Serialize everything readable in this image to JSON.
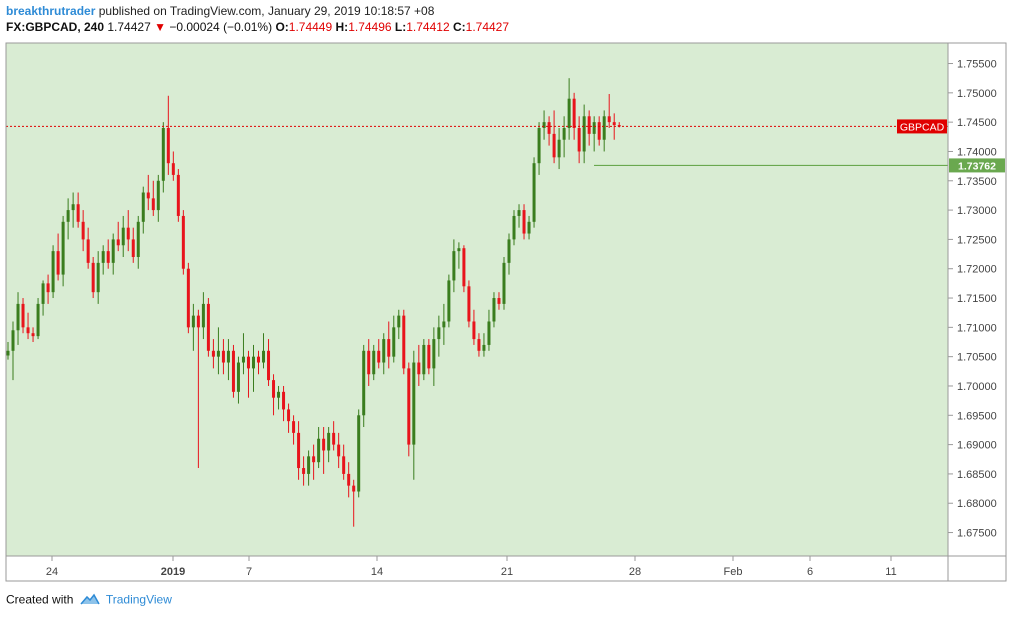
{
  "header": {
    "author": "breakthrutrader",
    "published_text": "published on TradingView.com, January 29, 2019 10:18:57 +08",
    "symbol": "FX:GBPCAD, 240",
    "last_price": "1.74427",
    "change_arrow": "▼",
    "change": "−0.00024 (−0.01%)",
    "o_label": "O:",
    "o_value": "1.74449",
    "h_label": "H:",
    "h_value": "1.74496",
    "l_label": "L:",
    "l_value": "1.74412",
    "c_label": "C:",
    "c_value": "1.74427"
  },
  "footer": {
    "created_with": "Created with",
    "brand": "TradingView",
    "logo_icon": "tradingview-cloud-icon"
  },
  "colors": {
    "plot_background": "#d9ecd3",
    "up_candle": "#3a7d1e",
    "down_candle": "#e8141c",
    "price_line": "#e00000",
    "support_line": "#6aa84f",
    "axis_text": "#444444"
  },
  "chart_data": {
    "type": "candlestick",
    "timeframe_minutes": 240,
    "x_tick_labels": [
      "24",
      "2019",
      "7",
      "14",
      "21",
      "28",
      "Feb",
      "6",
      "11"
    ],
    "y_tick_labels": [
      "1.75500",
      "1.75000",
      "1.74500",
      "1.74000",
      "1.73500",
      "1.73000",
      "1.72500",
      "1.72000",
      "1.71500",
      "1.71000",
      "1.70500",
      "1.70000",
      "1.69500",
      "1.69000",
      "1.68500",
      "1.68000",
      "1.67500"
    ],
    "ylim": [
      1.671,
      1.7585
    ],
    "current_price_label": "GBPCAD",
    "current_price": 1.74427,
    "support_level_label": "1.73762",
    "support_level": 1.73762,
    "candles_ohlc": [
      [
        1.7052,
        1.7075,
        1.7045,
        1.706
      ],
      [
        1.706,
        1.711,
        1.701,
        1.7095
      ],
      [
        1.7095,
        1.716,
        1.707,
        1.714
      ],
      [
        1.714,
        1.715,
        1.709,
        1.71
      ],
      [
        1.71,
        1.7125,
        1.708,
        1.709
      ],
      [
        1.709,
        1.71,
        1.7075,
        1.7085
      ],
      [
        1.7085,
        1.715,
        1.708,
        1.714
      ],
      [
        1.714,
        1.718,
        1.712,
        1.7175
      ],
      [
        1.7175,
        1.719,
        1.714,
        1.716
      ],
      [
        1.716,
        1.724,
        1.715,
        1.723
      ],
      [
        1.723,
        1.726,
        1.718,
        1.719
      ],
      [
        1.719,
        1.729,
        1.717,
        1.728
      ],
      [
        1.728,
        1.732,
        1.725,
        1.73
      ],
      [
        1.73,
        1.733,
        1.727,
        1.731
      ],
      [
        1.731,
        1.733,
        1.727,
        1.728
      ],
      [
        1.728,
        1.73,
        1.723,
        1.725
      ],
      [
        1.725,
        1.727,
        1.72,
        1.721
      ],
      [
        1.721,
        1.722,
        1.715,
        1.716
      ],
      [
        1.716,
        1.723,
        1.714,
        1.721
      ],
      [
        1.721,
        1.724,
        1.719,
        1.723
      ],
      [
        1.723,
        1.725,
        1.72,
        1.721
      ],
      [
        1.721,
        1.726,
        1.719,
        1.725
      ],
      [
        1.725,
        1.728,
        1.723,
        1.724
      ],
      [
        1.724,
        1.729,
        1.722,
        1.727
      ],
      [
        1.727,
        1.73,
        1.723,
        1.725
      ],
      [
        1.725,
        1.727,
        1.721,
        1.722
      ],
      [
        1.722,
        1.729,
        1.72,
        1.728
      ],
      [
        1.728,
        1.734,
        1.726,
        1.733
      ],
      [
        1.733,
        1.736,
        1.73,
        1.732
      ],
      [
        1.732,
        1.735,
        1.729,
        1.73
      ],
      [
        1.73,
        1.736,
        1.728,
        1.735
      ],
      [
        1.735,
        1.745,
        1.733,
        1.744
      ],
      [
        1.744,
        1.7495,
        1.736,
        1.738
      ],
      [
        1.738,
        1.74,
        1.735,
        1.736
      ],
      [
        1.736,
        1.737,
        1.728,
        1.729
      ],
      [
        1.729,
        1.73,
        1.719,
        1.72
      ],
      [
        1.72,
        1.721,
        1.709,
        1.71
      ],
      [
        1.71,
        1.714,
        1.706,
        1.712
      ],
      [
        1.712,
        1.713,
        1.686,
        1.71
      ],
      [
        1.71,
        1.716,
        1.708,
        1.714
      ],
      [
        1.714,
        1.715,
        1.705,
        1.706
      ],
      [
        1.706,
        1.708,
        1.703,
        1.705
      ],
      [
        1.705,
        1.71,
        1.702,
        1.706
      ],
      [
        1.706,
        1.708,
        1.702,
        1.704
      ],
      [
        1.704,
        1.708,
        1.701,
        1.706
      ],
      [
        1.706,
        1.707,
        1.698,
        1.699
      ],
      [
        1.699,
        1.705,
        1.697,
        1.704
      ],
      [
        1.704,
        1.709,
        1.702,
        1.705
      ],
      [
        1.705,
        1.706,
        1.698,
        1.703
      ],
      [
        1.703,
        1.707,
        1.699,
        1.705
      ],
      [
        1.705,
        1.706,
        1.702,
        1.704
      ],
      [
        1.704,
        1.709,
        1.703,
        1.706
      ],
      [
        1.706,
        1.708,
        1.7,
        1.701
      ],
      [
        1.701,
        1.702,
        1.695,
        1.698
      ],
      [
        1.698,
        1.7,
        1.696,
        1.699
      ],
      [
        1.699,
        1.7,
        1.694,
        1.696
      ],
      [
        1.696,
        1.697,
        1.692,
        1.694
      ],
      [
        1.694,
        1.695,
        1.69,
        1.692
      ],
      [
        1.692,
        1.694,
        1.684,
        1.686
      ],
      [
        1.686,
        1.688,
        1.683,
        1.685
      ],
      [
        1.685,
        1.689,
        1.683,
        1.688
      ],
      [
        1.688,
        1.69,
        1.684,
        1.687
      ],
      [
        1.687,
        1.693,
        1.686,
        1.691
      ],
      [
        1.691,
        1.693,
        1.685,
        1.689
      ],
      [
        1.689,
        1.693,
        1.687,
        1.692
      ],
      [
        1.692,
        1.694,
        1.689,
        1.69
      ],
      [
        1.69,
        1.692,
        1.686,
        1.688
      ],
      [
        1.688,
        1.69,
        1.684,
        1.685
      ],
      [
        1.685,
        1.687,
        1.681,
        1.683
      ],
      [
        1.683,
        1.684,
        1.676,
        1.682
      ],
      [
        1.682,
        1.696,
        1.681,
        1.695
      ],
      [
        1.695,
        1.707,
        1.693,
        1.706
      ],
      [
        1.706,
        1.708,
        1.7,
        1.702
      ],
      [
        1.702,
        1.707,
        1.701,
        1.706
      ],
      [
        1.706,
        1.708,
        1.703,
        1.704
      ],
      [
        1.704,
        1.709,
        1.702,
        1.708
      ],
      [
        1.708,
        1.711,
        1.703,
        1.705
      ],
      [
        1.705,
        1.712,
        1.704,
        1.71
      ],
      [
        1.71,
        1.713,
        1.708,
        1.712
      ],
      [
        1.712,
        1.713,
        1.702,
        1.703
      ],
      [
        1.703,
        1.704,
        1.688,
        1.69
      ],
      [
        1.69,
        1.706,
        1.684,
        1.704
      ],
      [
        1.704,
        1.707,
        1.7,
        1.702
      ],
      [
        1.702,
        1.708,
        1.701,
        1.707
      ],
      [
        1.707,
        1.708,
        1.702,
        1.703
      ],
      [
        1.703,
        1.71,
        1.7,
        1.708
      ],
      [
        1.708,
        1.712,
        1.705,
        1.71
      ],
      [
        1.71,
        1.714,
        1.707,
        1.711
      ],
      [
        1.711,
        1.719,
        1.71,
        1.718
      ],
      [
        1.718,
        1.725,
        1.716,
        1.723
      ],
      [
        1.723,
        1.7245,
        1.72,
        1.7235
      ],
      [
        1.7235,
        1.724,
        1.716,
        1.717
      ],
      [
        1.717,
        1.718,
        1.71,
        1.711
      ],
      [
        1.711,
        1.713,
        1.707,
        1.708
      ],
      [
        1.708,
        1.709,
        1.705,
        1.706
      ],
      [
        1.706,
        1.709,
        1.705,
        1.707
      ],
      [
        1.707,
        1.713,
        1.706,
        1.711
      ],
      [
        1.711,
        1.716,
        1.71,
        1.715
      ],
      [
        1.715,
        1.716,
        1.713,
        1.714
      ],
      [
        1.714,
        1.722,
        1.713,
        1.721
      ],
      [
        1.721,
        1.726,
        1.719,
        1.725
      ],
      [
        1.725,
        1.73,
        1.724,
        1.729
      ],
      [
        1.729,
        1.731,
        1.727,
        1.73
      ],
      [
        1.73,
        1.731,
        1.725,
        1.726
      ],
      [
        1.726,
        1.729,
        1.725,
        1.728
      ],
      [
        1.728,
        1.739,
        1.727,
        1.738
      ],
      [
        1.738,
        1.745,
        1.736,
        1.744
      ],
      [
        1.744,
        1.747,
        1.742,
        1.745
      ],
      [
        1.745,
        1.746,
        1.741,
        1.743
      ],
      [
        1.743,
        1.747,
        1.738,
        1.739
      ],
      [
        1.739,
        1.744,
        1.737,
        1.742
      ],
      [
        1.742,
        1.746,
        1.739,
        1.744
      ],
      [
        1.744,
        1.7525,
        1.742,
        1.749
      ],
      [
        1.749,
        1.75,
        1.742,
        1.744
      ],
      [
        1.744,
        1.746,
        1.738,
        1.74
      ],
      [
        1.74,
        1.748,
        1.738,
        1.746
      ],
      [
        1.746,
        1.747,
        1.741,
        1.743
      ],
      [
        1.743,
        1.746,
        1.74,
        1.745
      ],
      [
        1.745,
        1.746,
        1.741,
        1.742
      ],
      [
        1.742,
        1.747,
        1.74,
        1.746
      ],
      [
        1.746,
        1.7498,
        1.744,
        1.745
      ],
      [
        1.745,
        1.7465,
        1.742,
        1.7445
      ],
      [
        1.7445,
        1.745,
        1.7441,
        1.74427
      ]
    ]
  }
}
